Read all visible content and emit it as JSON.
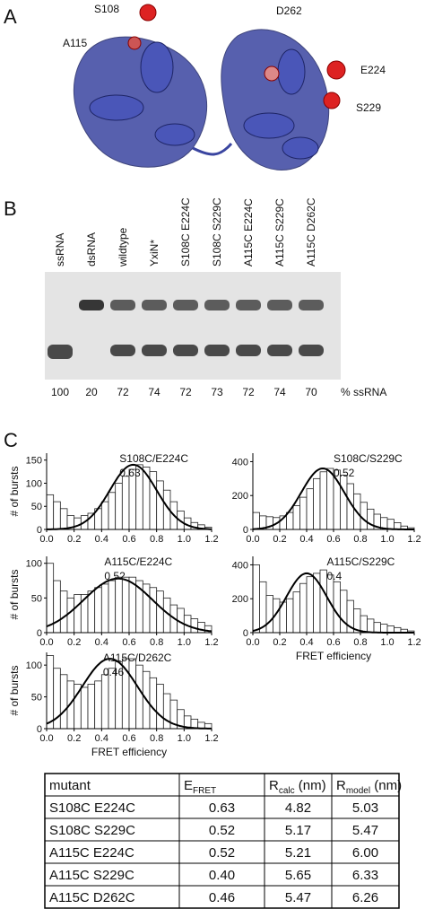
{
  "panel_a": {
    "letter": "A",
    "labels": [
      "S108",
      "A115",
      "D262",
      "E224",
      "S229"
    ]
  },
  "panel_b": {
    "letter": "B",
    "lanes": [
      "ssRNA",
      "dsRNA",
      "wildtype",
      "YxiN*",
      "S108C E224C",
      "S108C S229C",
      "A115C E224C",
      "A115C S229C",
      "A115C D262C"
    ],
    "percent": [
      100,
      20,
      72,
      74,
      72,
      73,
      72,
      74,
      70
    ],
    "unit": "% ssRNA"
  },
  "panel_c": {
    "letter": "C"
  },
  "chart_data": [
    {
      "type": "histogram",
      "annotation": {
        "name": "S108C/E224C",
        "value": 0.63
      },
      "fit": {
        "peak": 140,
        "sigma": 0.17
      },
      "ylabel": "# of bursts",
      "bins": [
        0,
        0.05,
        0.1,
        0.15,
        0.2,
        0.25,
        0.3,
        0.35,
        0.4,
        0.45,
        0.5,
        0.55,
        0.6,
        0.65,
        0.7,
        0.75,
        0.8,
        0.85,
        0.9,
        0.95,
        1,
        1.05,
        1.1,
        1.15,
        1.2
      ],
      "counts": [
        75,
        60,
        45,
        30,
        25,
        30,
        35,
        45,
        60,
        80,
        100,
        115,
        130,
        140,
        135,
        125,
        105,
        85,
        60,
        40,
        25,
        15,
        10,
        5
      ],
      "xlim": [
        0,
        1.2
      ],
      "xticks": [
        {
          "value": 0,
          "label": "0.0"
        },
        0.2,
        0.4,
        0.6,
        0.8,
        {
          "value": 1,
          "label": "1.0"
        },
        1.2
      ],
      "ylim": [
        0,
        165
      ],
      "yticks": [
        0,
        50,
        100,
        150
      ]
    },
    {
      "type": "histogram",
      "annotation": {
        "name": "S108C/S229C",
        "value": 0.52
      },
      "fit": {
        "peak": 360,
        "sigma": 0.16
      },
      "bins": [
        0,
        0.05,
        0.1,
        0.15,
        0.2,
        0.25,
        0.3,
        0.35,
        0.4,
        0.45,
        0.5,
        0.55,
        0.6,
        0.65,
        0.7,
        0.75,
        0.8,
        0.85,
        0.9,
        0.95,
        1,
        1.05,
        1.1,
        1.15,
        1.2
      ],
      "counts": [
        100,
        80,
        75,
        70,
        80,
        100,
        140,
        190,
        240,
        300,
        340,
        360,
        350,
        320,
        270,
        210,
        160,
        120,
        90,
        70,
        60,
        40,
        20,
        10
      ],
      "xlim": [
        0,
        1.2
      ],
      "xticks": [
        {
          "value": 0,
          "label": "0.0"
        },
        0.2,
        0.4,
        0.6,
        0.8,
        {
          "value": 1,
          "label": "1.0"
        },
        1.2
      ],
      "ylim": [
        0,
        450
      ],
      "yticks": [
        0,
        200,
        400
      ]
    },
    {
      "type": "histogram",
      "annotation": {
        "name": "A115C/E224C",
        "value": 0.52
      },
      "fit": {
        "peak": 78,
        "sigma": 0.25
      },
      "ylabel": "# of bursts",
      "bins": [
        0,
        0.05,
        0.1,
        0.15,
        0.2,
        0.25,
        0.3,
        0.35,
        0.4,
        0.45,
        0.5,
        0.55,
        0.6,
        0.65,
        0.7,
        0.75,
        0.8,
        0.85,
        0.9,
        0.95,
        1,
        1.05,
        1.1,
        1.15,
        1.2
      ],
      "counts": [
        100,
        75,
        60,
        50,
        55,
        55,
        60,
        65,
        70,
        75,
        80,
        80,
        80,
        75,
        70,
        65,
        60,
        50,
        40,
        35,
        25,
        20,
        15,
        10
      ],
      "xlim": [
        0,
        1.2
      ],
      "xticks": [
        {
          "value": 0,
          "label": "0.0"
        },
        0.2,
        0.4,
        0.6,
        0.8,
        {
          "value": 1,
          "label": "1.0"
        },
        1.2
      ],
      "ylim": [
        0,
        110
      ],
      "yticks": [
        0,
        50,
        100
      ]
    },
    {
      "type": "histogram",
      "annotation": {
        "name": "A115C/S229C",
        "value": 0.4
      },
      "fit": {
        "peak": 350,
        "sigma": 0.15
      },
      "xlabel": "FRET efficiency",
      "bins": [
        0,
        0.05,
        0.1,
        0.15,
        0.2,
        0.25,
        0.3,
        0.35,
        0.4,
        0.45,
        0.5,
        0.55,
        0.6,
        0.65,
        0.7,
        0.75,
        0.8,
        0.85,
        0.9,
        0.95,
        1,
        1.05,
        1.1,
        1.15,
        1.2
      ],
      "counts": [
        400,
        300,
        220,
        200,
        180,
        200,
        240,
        290,
        330,
        350,
        370,
        340,
        300,
        250,
        190,
        140,
        100,
        80,
        60,
        50,
        40,
        30,
        20,
        10
      ],
      "xlim": [
        0,
        1.2
      ],
      "xticks": [
        {
          "value": 0,
          "label": "0.0"
        },
        0.2,
        0.4,
        0.6,
        0.8,
        {
          "value": 1,
          "label": "1.0"
        },
        1.2
      ],
      "ylim": [
        0,
        450
      ],
      "yticks": [
        0,
        200,
        400
      ]
    },
    {
      "type": "histogram",
      "annotation": {
        "name": "A115C/D262C",
        "value": 0.46
      },
      "fit": {
        "peak": 110,
        "sigma": 0.2
      },
      "ylabel": "# of bursts",
      "xlabel": "FRET efficiency",
      "bins": [
        0,
        0.05,
        0.1,
        0.15,
        0.2,
        0.25,
        0.3,
        0.35,
        0.4,
        0.45,
        0.5,
        0.55,
        0.6,
        0.65,
        0.7,
        0.75,
        0.8,
        0.85,
        0.9,
        0.95,
        1,
        1.05,
        1.1,
        1.15,
        1.2
      ],
      "counts": [
        115,
        95,
        85,
        75,
        70,
        65,
        70,
        75,
        85,
        95,
        105,
        110,
        110,
        100,
        90,
        80,
        70,
        55,
        45,
        30,
        20,
        15,
        10,
        8
      ],
      "xlim": [
        0,
        1.2
      ],
      "xticks": [
        {
          "value": 0,
          "label": "0.0"
        },
        0.2,
        0.4,
        0.6,
        0.8,
        {
          "value": 1,
          "label": "1.0"
        },
        1.2
      ],
      "ylim": [
        0,
        120
      ],
      "yticks": [
        0,
        50,
        100
      ]
    }
  ],
  "table": {
    "header": [
      {
        "main": "mutant"
      },
      {
        "main": "E",
        "sub": "FRET"
      },
      {
        "main": "R",
        "sub": "calc",
        "unit": " (nm)"
      },
      {
        "main": "R",
        "sub": "model",
        "unit": " (nm)"
      }
    ],
    "rows": [
      [
        "S108C E224C",
        "0.63",
        "4.82",
        "5.03"
      ],
      [
        "S108C S229C",
        "0.52",
        "5.17",
        "5.47"
      ],
      [
        "A115C E224C",
        "0.52",
        "5.21",
        "6.00"
      ],
      [
        "A115C S229C",
        "0.40",
        "5.65",
        "6.33"
      ],
      [
        "A115C D262C",
        "0.46",
        "5.47",
        "6.26"
      ]
    ]
  }
}
